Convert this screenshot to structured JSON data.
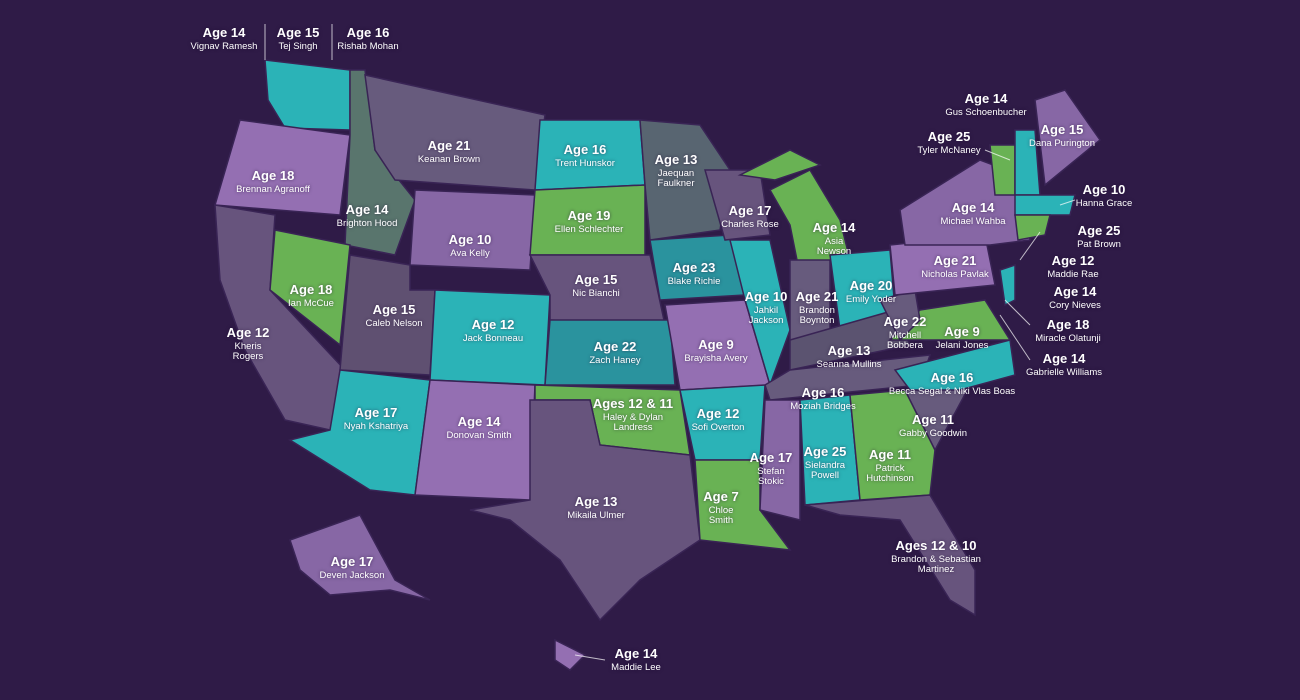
{
  "labels": [
    {
      "age": "Age 14",
      "name": "Vignav Ramesh"
    },
    {
      "age": "Age 15",
      "name": "Tej Singh"
    },
    {
      "age": "Age 16",
      "name": "Rishab Mohan"
    },
    {
      "age": "Age 21",
      "name": "Keanan Brown"
    },
    {
      "age": "Age 18",
      "name": "Brennan Agranoff"
    },
    {
      "age": "Age 14",
      "name": "Brighton Hood"
    },
    {
      "age": "Age 16",
      "name": "Trent Hunskor"
    },
    {
      "age": "Age 13",
      "name": "Jaequan Faulkner"
    },
    {
      "age": "Age 19",
      "name": "Ellen Schlechter"
    },
    {
      "age": "Age 10",
      "name": "Ava Kelly"
    },
    {
      "age": "Age 17",
      "name": "Charles Rose"
    },
    {
      "age": "Age 14",
      "name": "Asia Newson"
    },
    {
      "age": "Age 18",
      "name": "Ian McCue"
    },
    {
      "age": "Age 15",
      "name": "Caleb Nelson"
    },
    {
      "age": "Age 15",
      "name": "Nic Bianchi"
    },
    {
      "age": "Age 23",
      "name": "Blake Richie"
    },
    {
      "age": "Age 12",
      "name": "Jack Bonneau"
    },
    {
      "age": "Age 12",
      "name": "Kheris Rogers"
    },
    {
      "age": "Age 10",
      "name": "Jahkil Jackson"
    },
    {
      "age": "Age 21",
      "name": "Brandon Boynton"
    },
    {
      "age": "Age 20",
      "name": "Emily Yoder"
    },
    {
      "age": "Age 21",
      "name": "Nicholas Pavlak"
    },
    {
      "age": "Age 22",
      "name": "Zach Haney"
    },
    {
      "age": "Age 9",
      "name": "Brayisha Avery"
    },
    {
      "age": "Age 22",
      "name": "Mitchell Bobbera"
    },
    {
      "age": "Age 9",
      "name": "Jelani Jones"
    },
    {
      "age": "Age 13",
      "name": "Seanna Mullins"
    },
    {
      "age": "Age 17",
      "name": "Nyah Kshatriya"
    },
    {
      "age": "Age 14",
      "name": "Donovan Smith"
    },
    {
      "age": "Ages 12 & 11",
      "name": "Haley & Dylan Landress"
    },
    {
      "age": "Age 12",
      "name": "Sofi Overton"
    },
    {
      "age": "Age 16",
      "name": "Moziah Bridges"
    },
    {
      "age": "Age 16",
      "name": "Becca Segal & Niki Vlas Boas"
    },
    {
      "age": "Age 11",
      "name": "Gabby Goodwin"
    },
    {
      "age": "Age 17",
      "name": "Stefan Stokic"
    },
    {
      "age": "Age 25",
      "name": "Sielandra Powell"
    },
    {
      "age": "Age 11",
      "name": "Patrick Hutchinson"
    },
    {
      "age": "Age 13",
      "name": "Mikaila Ulmer"
    },
    {
      "age": "Age 7",
      "name": "Chloe Smith"
    },
    {
      "age": "Ages 12 & 10",
      "name": "Brandon & Sebastian Martinez"
    },
    {
      "age": "Age 17",
      "name": "Deven Jackson"
    },
    {
      "age": "Age 14",
      "name": "Maddie Lee"
    },
    {
      "age": "Age 14",
      "name": "Gus Schoenbucher"
    },
    {
      "age": "Age 25",
      "name": "Tyler McNaney"
    },
    {
      "age": "Age 15",
      "name": "Dana Purington"
    },
    {
      "age": "Age 10",
      "name": "Hanna Grace"
    },
    {
      "age": "Age 14",
      "name": "Michael Wahba"
    },
    {
      "age": "Age 25",
      "name": "Pat Brown"
    },
    {
      "age": "Age 12",
      "name": "Maddie Rae"
    },
    {
      "age": "Age 14",
      "name": "Cory Nieves"
    },
    {
      "age": "Age 18",
      "name": "Miracle Olatunji"
    },
    {
      "age": "Age 14",
      "name": "Gabrielle Williams"
    }
  ]
}
